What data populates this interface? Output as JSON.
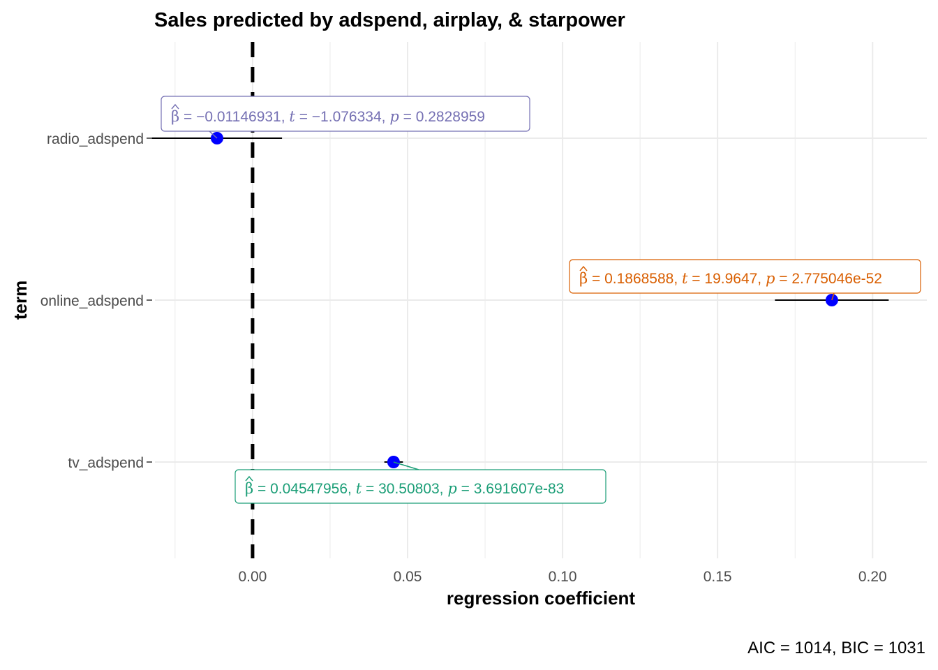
{
  "chart_data": {
    "type": "scatter",
    "title": "Sales predicted by adspend, airplay, & starpower",
    "xlabel": "regression coefficient",
    "ylabel": "term",
    "xlim": [
      -0.0315,
      0.2175
    ],
    "x_ticks": [
      0.0,
      0.05,
      0.1,
      0.15,
      0.2
    ],
    "x_tick_labels": [
      "0.00",
      "0.05",
      "0.10",
      "0.15",
      "0.20"
    ],
    "reference_line": 0,
    "grid": true,
    "caption": "AIC = 1014, BIC = 1031",
    "terms": [
      {
        "term": "radio_adspend",
        "estimate": -0.01146931,
        "conf_low": -0.0325,
        "conf_high": 0.0095,
        "label_color": "#7570b3",
        "beta": "−0.01146931",
        "t": "−1.076334",
        "p": "0.2828959"
      },
      {
        "term": "online_adspend",
        "estimate": 0.1868588,
        "conf_low": 0.1685,
        "conf_high": 0.2052,
        "label_color": "#d95f02",
        "beta": "0.1868588",
        "t": "19.9647",
        "p": "2.775046e-52"
      },
      {
        "term": "tv_adspend",
        "estimate": 0.04547956,
        "conf_low": 0.0425,
        "conf_high": 0.0485,
        "label_color": "#1b9e77",
        "beta": "0.04547956",
        "t": "30.50803",
        "p": "3.691607e-83"
      }
    ]
  }
}
